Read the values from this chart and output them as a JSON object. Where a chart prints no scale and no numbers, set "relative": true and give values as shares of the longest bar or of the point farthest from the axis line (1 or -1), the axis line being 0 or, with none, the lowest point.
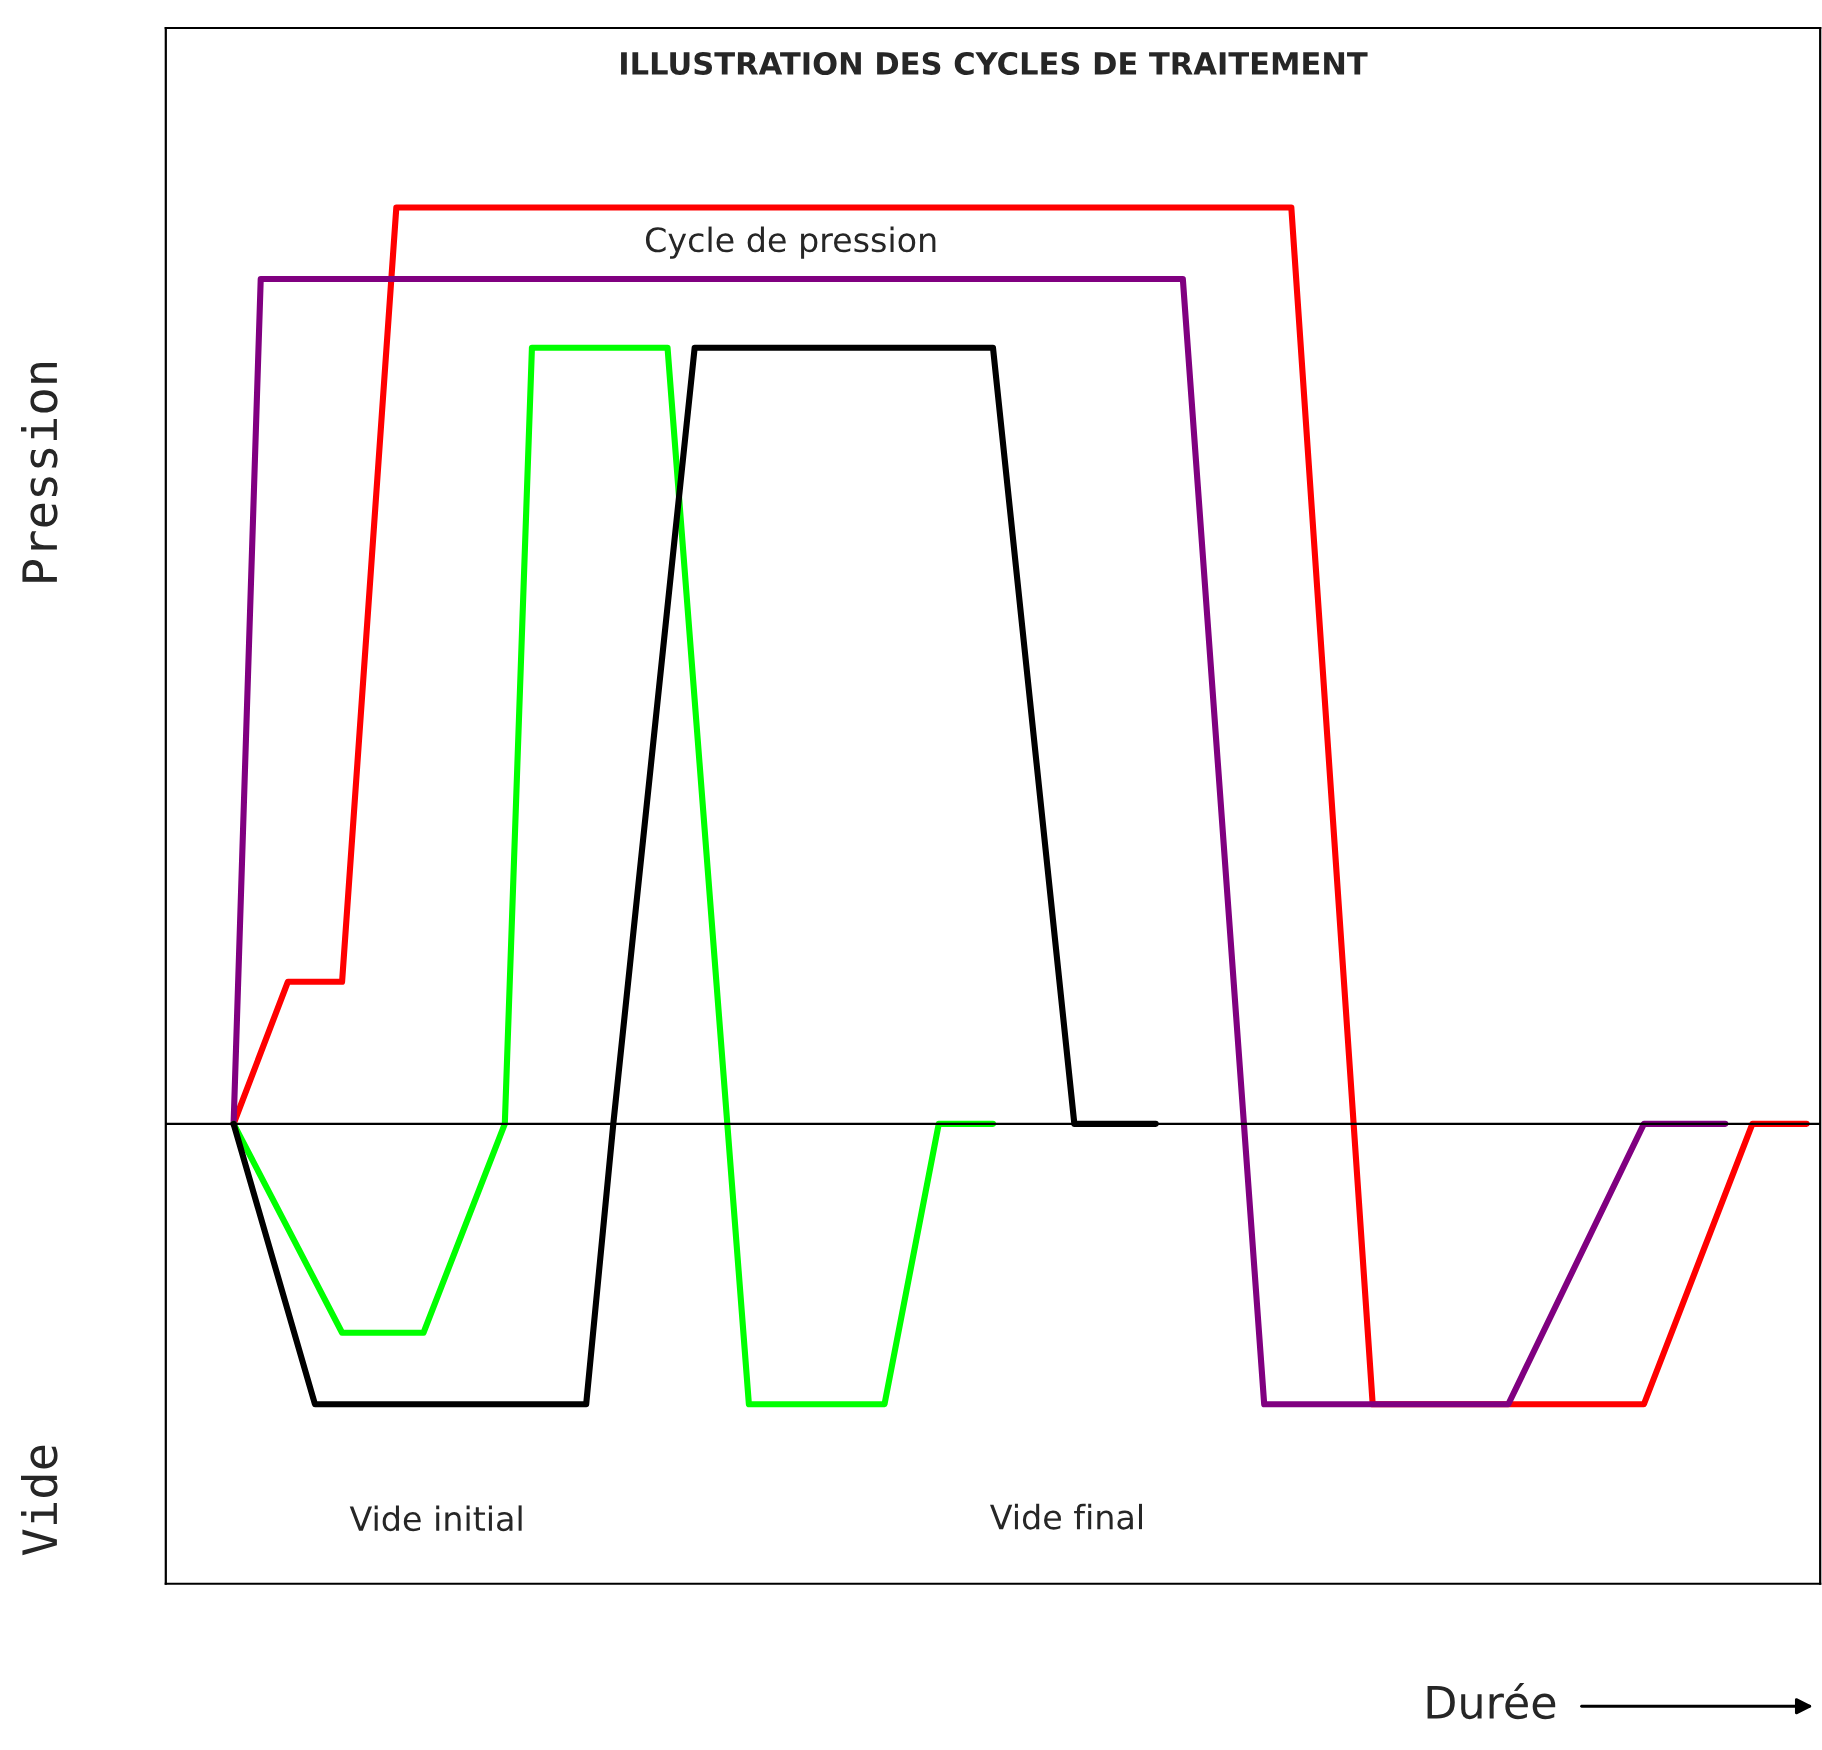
{
  "chart_data": {
    "type": "line",
    "title": "ILLUSTRATION DES CYCLES DE TRAITEMENT",
    "ylabel": "Pression",
    "relative": true,
    "marker": "none",
    "line_style": "solid",
    "categories": [
      null,
      null,
      null,
      null,
      null,
      null,
      null,
      null,
      null,
      null,
      null,
      null,
      null,
      null,
      null,
      null,
      null,
      null,
      null,
      null,
      null,
      null,
      null,
      null,
      null,
      null,
      null,
      null,
      null,
      null,
      null,
      null,
      null,
      null,
      null,
      null,
      null,
      null,
      null,
      null,
      null,
      null,
      null,
      null,
      null,
      null,
      null,
      null,
      null,
      null,
      null,
      null,
      null,
      null,
      null,
      null,
      null,
      null,
      null,
      null,
      null
    ],
    "series": [
      {
        "color": "#ff0000",
        "values": [
          null,
          null,
          0,
          null,
          0.155,
          null,
          0.155,
          null,
          1,
          null,
          null,
          null,
          null,
          null,
          null,
          null,
          null,
          null,
          null,
          null,
          null,
          null,
          null,
          null,
          null,
          null,
          null,
          null,
          null,
          null,
          null,
          null,
          null,
          null,
          null,
          null,
          null,
          null,
          null,
          null,
          null,
          1,
          null,
          null,
          -0.306,
          null,
          null,
          null,
          null,
          null,
          null,
          null,
          null,
          null,
          -0.306,
          null,
          null,
          null,
          0,
          null,
          0
        ]
      },
      {
        "color": "#800080",
        "values": [
          null,
          null,
          0,
          0.922,
          null,
          null,
          null,
          null,
          null,
          null,
          null,
          null,
          null,
          null,
          null,
          null,
          null,
          null,
          null,
          null,
          null,
          null,
          null,
          null,
          null,
          null,
          null,
          null,
          null,
          null,
          null,
          null,
          null,
          null,
          null,
          null,
          null,
          0.922,
          null,
          null,
          -0.306,
          null,
          null,
          null,
          null,
          null,
          null,
          null,
          null,
          -0.306,
          null,
          null,
          null,
          null,
          0,
          null,
          null,
          0,
          null,
          null,
          null
        ]
      },
      {
        "color": "#00ff00",
        "values": [
          null,
          null,
          0,
          null,
          null,
          null,
          -0.228,
          null,
          null,
          -0.228,
          null,
          null,
          0,
          0.847,
          null,
          null,
          null,
          null,
          0.847,
          null,
          null,
          -0.306,
          null,
          null,
          null,
          null,
          -0.306,
          null,
          0,
          null,
          0,
          null,
          null,
          null,
          null,
          null,
          null,
          null,
          null,
          null,
          null,
          null,
          null,
          null,
          null,
          null,
          null,
          null,
          null,
          null,
          null,
          null,
          null,
          null,
          null,
          null,
          null,
          null,
          null,
          null,
          null
        ]
      },
      {
        "color": "#000000",
        "values": [
          null,
          null,
          0,
          null,
          null,
          -0.306,
          null,
          null,
          null,
          null,
          null,
          null,
          null,
          null,
          null,
          -0.306,
          0,
          null,
          null,
          0.847,
          null,
          null,
          null,
          null,
          null,
          null,
          null,
          null,
          null,
          null,
          0.847,
          null,
          null,
          0,
          null,
          null,
          0,
          null,
          null,
          null,
          null,
          null,
          null,
          null,
          null,
          null,
          null,
          null,
          null,
          null,
          null,
          null,
          null,
          null,
          null,
          null,
          null,
          null,
          null,
          null,
          null
        ]
      }
    ],
    "annotations": [
      "Cycle de pression",
      "Vide initial",
      "Vide final",
      "Vide",
      "Durée"
    ]
  }
}
